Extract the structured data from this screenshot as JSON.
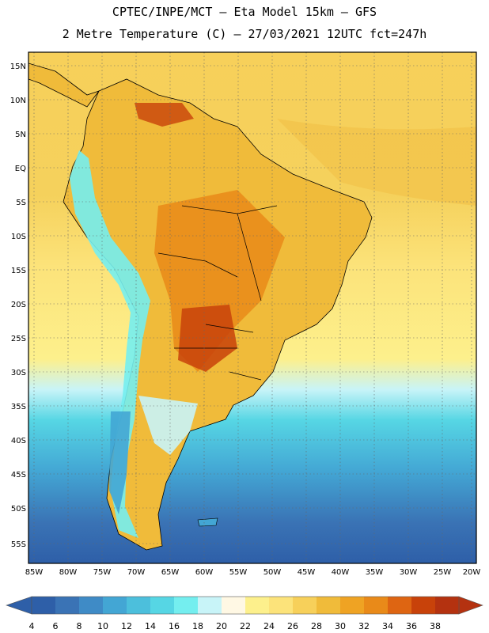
{
  "header": {
    "line1": "CPTEC/INPE/MCT –  Eta Model 15km – GFS",
    "line2": "2 Metre Temperature (C) – 27/03/2021 12UTC fct=247h"
  },
  "axes": {
    "lat_labels": [
      "15N",
      "10N",
      "5N",
      "EQ",
      "5S",
      "10S",
      "15S",
      "20S",
      "25S",
      "30S",
      "35S",
      "40S",
      "45S",
      "50S",
      "55S"
    ],
    "lon_labels": [
      "85W",
      "80W",
      "75W",
      "70W",
      "65W",
      "60W",
      "55W",
      "50W",
      "45W",
      "40W",
      "35W",
      "30W",
      "25W",
      "20W"
    ]
  },
  "colorbar": {
    "labels": [
      "4",
      "6",
      "8",
      "10",
      "12",
      "14",
      "16",
      "18",
      "20",
      "22",
      "24",
      "26",
      "28",
      "30",
      "32",
      "34",
      "36",
      "38"
    ],
    "colors": [
      "#2e5fa8",
      "#3a73b5",
      "#3f8bc6",
      "#43a6d4",
      "#4cbfdc",
      "#56d6e4",
      "#74eeef",
      "#c8f4f8",
      "#fff8e4",
      "#fdf08c",
      "#fce37a",
      "#f7d05a",
      "#f0bb3a",
      "#efa323",
      "#e98a19",
      "#de6512",
      "#c8420a",
      "#b43210"
    ]
  }
}
